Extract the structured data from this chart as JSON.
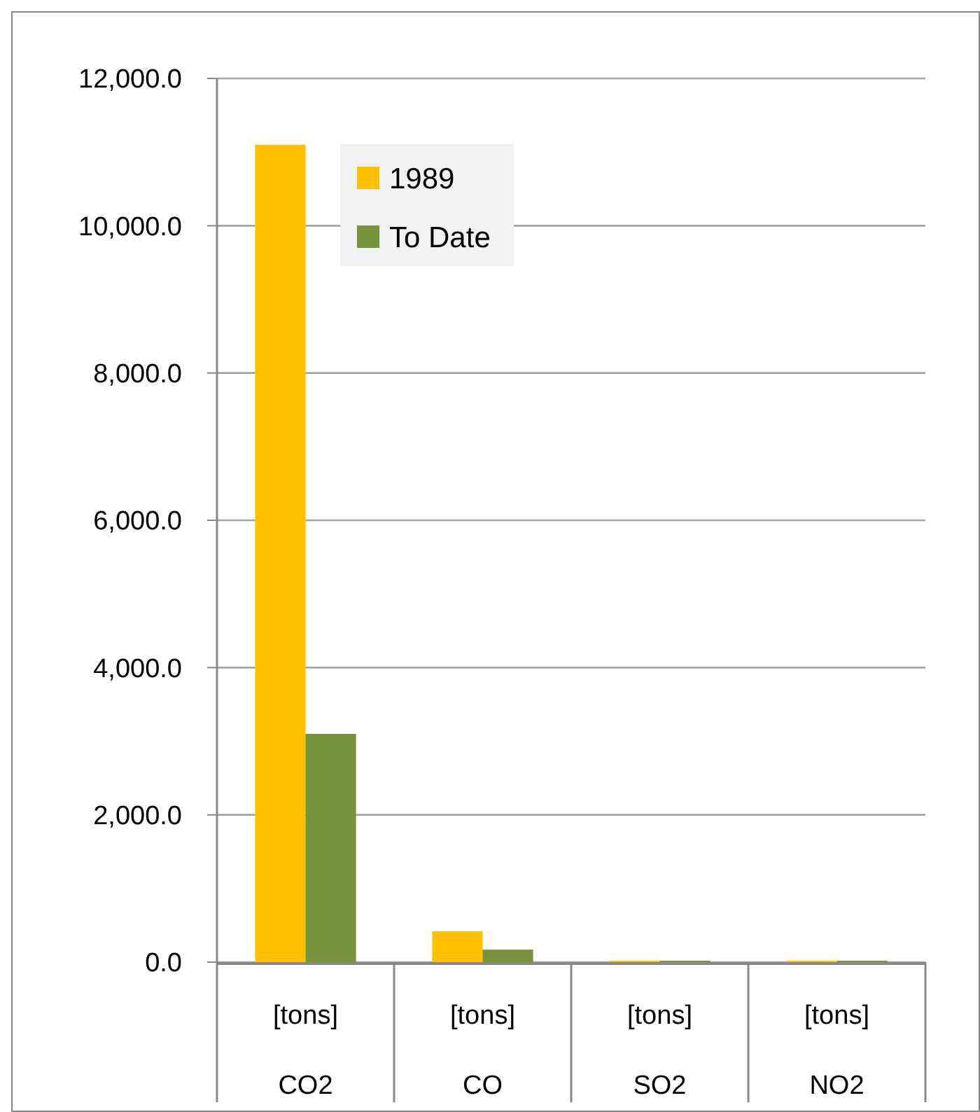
{
  "chart_data": {
    "type": "bar",
    "categories": [
      "[tons]\nCO2",
      "[tons]\nCO",
      "[tons]\nSO2",
      "[tons]\nNO2"
    ],
    "series": [
      {
        "name": "1989",
        "color": "#ffc000",
        "values": [
          11100,
          420,
          20,
          20
        ]
      },
      {
        "name": "To Date",
        "color": "#77933c",
        "values": [
          3100,
          170,
          20,
          20
        ]
      }
    ],
    "ylim": [
      0,
      12000
    ],
    "yticks": [
      {
        "value": 0,
        "label": "0.0"
      },
      {
        "value": 2000,
        "label": "2,000.0"
      },
      {
        "value": 4000,
        "label": "4,000.0"
      },
      {
        "value": 6000,
        "label": "6,000.0"
      },
      {
        "value": 8000,
        "label": "8,000.0"
      },
      {
        "value": 10000,
        "label": "10,000.0"
      },
      {
        "value": 12000,
        "label": "12,000.0"
      }
    ],
    "grid": "y",
    "legend": "top"
  }
}
